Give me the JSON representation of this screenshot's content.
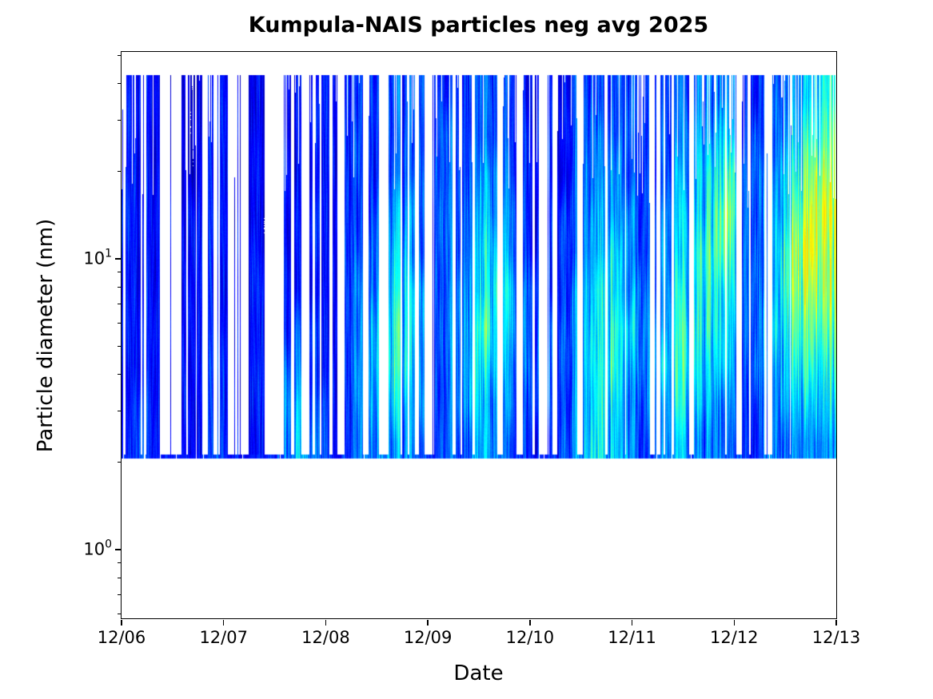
{
  "chart_data": {
    "type": "heatmap",
    "title": "Kumpula-NAIS particles neg avg 2025",
    "xlabel": "Date",
    "ylabel": "Particle diameter (nm)",
    "x_tick_labels": [
      "12/06",
      "12/07",
      "12/08",
      "12/09",
      "12/10",
      "12/11",
      "12/12",
      "12/13"
    ],
    "y_ticks": [
      {
        "base": "10",
        "exp": "1",
        "value": 10
      },
      {
        "base": "10",
        "exp": "0",
        "value": 1
      }
    ],
    "y_scale": "log",
    "y_range_nm": [
      0.58,
      51.5
    ],
    "data_diameter_range_nm": [
      2.05,
      43
    ],
    "time_span_days": 7,
    "columns_per_day": 8,
    "colormap": "jet",
    "intensity_note": "digits 0-9 per 3h bin: 0 no data, 2 dark blue, 4 blue, 6 cyan, 9 yellow",
    "row_center_diameters_nm": [
      36,
      26.5,
      19.6,
      14.4,
      10.6,
      7.8,
      5.8,
      4.3,
      3.15,
      2.33
    ],
    "grid_rows_top_to_bottom": [
      "22212122212122222333333332333332222333333333344432344556",
      "22212122212122222333333333333333222334333333445533345667",
      "22222122212122222333333333334433222344433334456743456788",
      "22222222212122222333444333344443223345443344557843457899",
      "22222222222122222334454333345543223345543344567743468998",
      "22222222222222222344555433445654323456544345566643468888",
      "22222222222223322345565433456554333456654445666543567777",
      "22222223222234322345665433455544333456644455655533556666",
      "23222223222235432345554433454443333456543445554432455555",
      "23222223222235432344444333344433223456543344444332444444"
    ],
    "coverage_per_column": "66434344323234334678887776788876445789877678888854678999",
    "colors": {
      "axis": "#000000",
      "background": "#ffffff"
    }
  }
}
